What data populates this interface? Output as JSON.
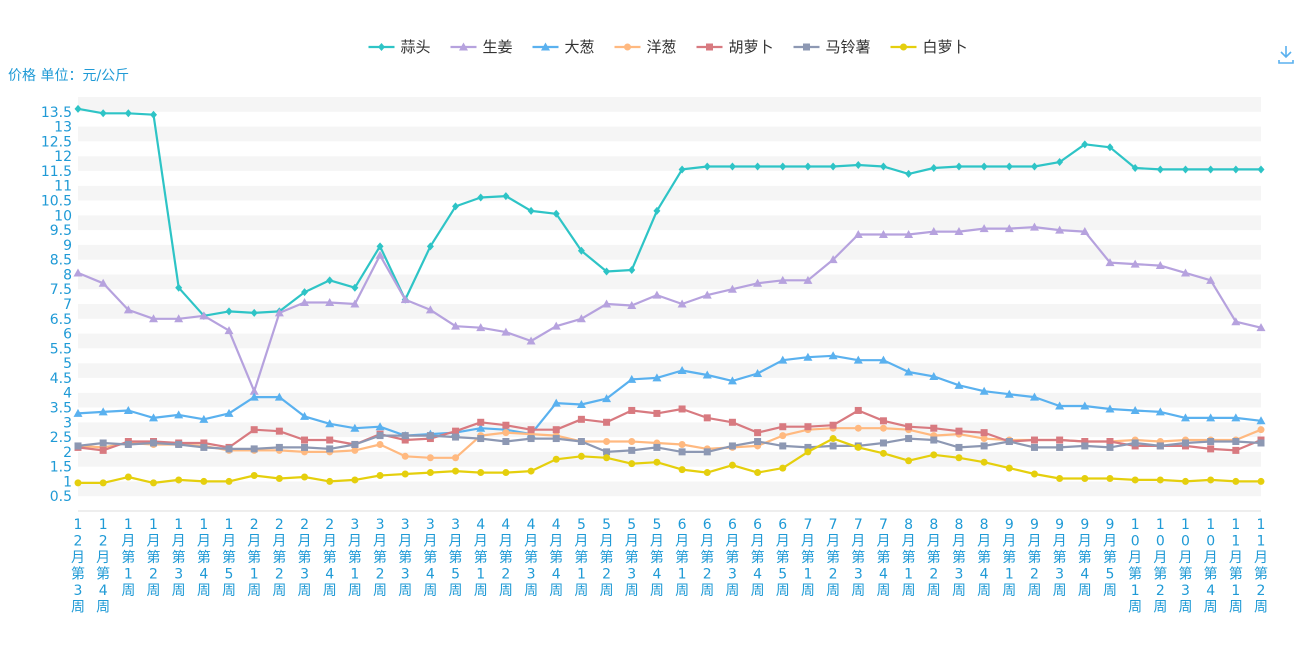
{
  "chart_data": {
    "type": "line",
    "ylabel": "价格 单位：元/公斤",
    "ylim": [
      0,
      14
    ],
    "y_ticks": [
      "0.5",
      "1",
      "1.5",
      "2",
      "2.5",
      "3",
      "3.5",
      "4",
      "4.5",
      "5",
      "5.5",
      "6",
      "6.5",
      "7",
      "7.5",
      "8",
      "8.5",
      "9",
      "9.5",
      "10",
      "10.5",
      "11",
      "11.5",
      "12",
      "12.5",
      "13",
      "13.5"
    ],
    "grid": "horizontal bands",
    "legend_position": "top-center",
    "categories": [
      "12月第3周",
      "12月第4周",
      "1月第1周",
      "1月第2周",
      "1月第3周",
      "1月第4周",
      "1月第5周",
      "2月第1周",
      "2月第2周",
      "2月第3周",
      "2月第4周",
      "3月第1周",
      "3月第2周",
      "3月第3周",
      "3月第4周",
      "3月第5周",
      "4月第1周",
      "4月第2周",
      "4月第3周",
      "4月第4周",
      "5月第1周",
      "5月第2周",
      "5月第3周",
      "5月第4周",
      "6月第1周",
      "6月第2周",
      "6月第3周",
      "6月第4周",
      "6月第5周",
      "7月第1周",
      "7月第2周",
      "7月第3周",
      "7月第4周",
      "8月第1周",
      "8月第2周",
      "8月第3周",
      "8月第4周",
      "9月第1周",
      "9月第2周",
      "9月第3周",
      "9月第4周",
      "9月第5周",
      "10月第1周",
      "10月第2周",
      "10月第3周",
      "10月第4周",
      "11月第1周",
      "11月第2周"
    ],
    "series": [
      {
        "name": "蒜头",
        "color": "#2ec4c6",
        "marker": "diamond",
        "values": [
          13.6,
          13.45,
          13.45,
          13.4,
          7.55,
          6.6,
          6.75,
          6.7,
          6.75,
          7.4,
          7.8,
          7.55,
          8.95,
          7.15,
          8.95,
          10.3,
          10.6,
          10.65,
          10.15,
          10.05,
          8.8,
          8.1,
          8.15,
          10.15,
          11.55,
          11.65,
          11.65,
          11.65,
          11.65,
          11.65,
          11.65,
          11.7,
          11.65,
          11.4,
          11.6,
          11.65,
          11.65,
          11.65,
          11.65,
          11.8,
          12.4,
          12.3,
          11.6,
          11.55,
          11.55,
          11.55,
          11.55,
          11.55
        ]
      },
      {
        "name": "生姜",
        "color": "#b6a2de",
        "marker": "triangle",
        "values": [
          8.05,
          7.7,
          6.8,
          6.5,
          6.5,
          6.6,
          6.1,
          4.05,
          6.7,
          7.05,
          7.05,
          7.0,
          8.65,
          7.15,
          6.8,
          6.25,
          6.2,
          6.05,
          5.75,
          6.25,
          6.5,
          7.0,
          6.95,
          7.3,
          7.0,
          7.3,
          7.5,
          7.7,
          7.8,
          7.8,
          8.5,
          9.35,
          9.35,
          9.35,
          9.45,
          9.45,
          9.55,
          9.55,
          9.6,
          9.5,
          9.45,
          8.4,
          8.35,
          8.3,
          8.05,
          7.8,
          6.4,
          6.2
        ]
      },
      {
        "name": "大葱",
        "color": "#5ab1ef",
        "marker": "triangle",
        "values": [
          3.3,
          3.35,
          3.4,
          3.15,
          3.25,
          3.1,
          3.3,
          3.85,
          3.85,
          3.2,
          2.95,
          2.8,
          2.85,
          2.55,
          2.6,
          2.65,
          2.8,
          2.75,
          2.6,
          3.65,
          3.6,
          3.8,
          4.45,
          4.5,
          4.75,
          4.6,
          4.4,
          4.65,
          5.1,
          5.2,
          5.25,
          5.1,
          5.1,
          4.7,
          4.55,
          4.25,
          4.05,
          3.95,
          3.85,
          3.55,
          3.55,
          3.45,
          3.4,
          3.35,
          3.15,
          3.15,
          3.15,
          3.05
        ]
      },
      {
        "name": "洋葱",
        "color": "#ffb980",
        "marker": "circle",
        "values": [
          2.2,
          2.15,
          2.3,
          2.25,
          2.25,
          2.2,
          2.05,
          2.05,
          2.05,
          2.0,
          2.0,
          2.05,
          2.25,
          1.85,
          1.8,
          1.8,
          2.55,
          2.65,
          2.6,
          2.55,
          2.35,
          2.35,
          2.35,
          2.3,
          2.25,
          2.1,
          2.15,
          2.2,
          2.55,
          2.75,
          2.8,
          2.8,
          2.8,
          2.75,
          2.55,
          2.6,
          2.45,
          2.4,
          2.4,
          2.4,
          2.35,
          2.35,
          2.4,
          2.35,
          2.4,
          2.4,
          2.4,
          2.75
        ]
      },
      {
        "name": "胡萝卜",
        "color": "#d87a80",
        "marker": "square",
        "values": [
          2.15,
          2.05,
          2.35,
          2.35,
          2.3,
          2.3,
          2.15,
          2.75,
          2.7,
          2.4,
          2.4,
          2.25,
          2.6,
          2.4,
          2.45,
          2.7,
          3.0,
          2.9,
          2.75,
          2.75,
          3.1,
          3.0,
          3.4,
          3.3,
          3.45,
          3.15,
          3.0,
          2.65,
          2.85,
          2.85,
          2.9,
          3.4,
          3.05,
          2.85,
          2.8,
          2.7,
          2.65,
          2.35,
          2.4,
          2.4,
          2.35,
          2.35,
          2.2,
          2.2,
          2.2,
          2.1,
          2.05,
          2.4
        ]
      },
      {
        "name": "马铃薯",
        "color": "#8d98b3",
        "marker": "square",
        "values": [
          2.2,
          2.3,
          2.25,
          2.3,
          2.25,
          2.15,
          2.1,
          2.1,
          2.15,
          2.15,
          2.1,
          2.25,
          2.55,
          2.55,
          2.55,
          2.5,
          2.45,
          2.35,
          2.45,
          2.45,
          2.35,
          2.0,
          2.05,
          2.15,
          2.0,
          2.0,
          2.2,
          2.35,
          2.2,
          2.15,
          2.2,
          2.2,
          2.3,
          2.45,
          2.4,
          2.15,
          2.2,
          2.35,
          2.15,
          2.15,
          2.2,
          2.15,
          2.3,
          2.2,
          2.3,
          2.35,
          2.35,
          2.3
        ]
      },
      {
        "name": "白萝卜",
        "color": "#e5cf0d",
        "marker": "circle",
        "values": [
          0.95,
          0.95,
          1.15,
          0.95,
          1.05,
          1.0,
          1.0,
          1.2,
          1.1,
          1.15,
          1.0,
          1.05,
          1.2,
          1.25,
          1.3,
          1.35,
          1.3,
          1.3,
          1.35,
          1.75,
          1.85,
          1.8,
          1.6,
          1.65,
          1.4,
          1.3,
          1.55,
          1.3,
          1.45,
          2.0,
          2.45,
          2.15,
          1.95,
          1.7,
          1.9,
          1.8,
          1.65,
          1.45,
          1.25,
          1.1,
          1.1,
          1.1,
          1.05,
          1.05,
          1.0,
          1.05,
          1.0,
          1.0
        ]
      }
    ]
  },
  "toolbar": {
    "download_icon": "download-icon"
  }
}
